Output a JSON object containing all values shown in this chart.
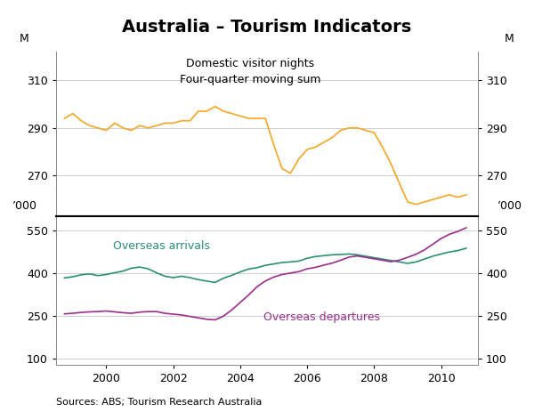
{
  "title": "Australia – Tourism Indicators",
  "source_text": "Sources: ABS; Tourism Research Australia",
  "upper_label_line1": "Domestic visitor nights",
  "upper_label_line2": "Four-quarter moving sum",
  "lower_label1": "Overseas arrivals",
  "lower_label2": "Overseas departures",
  "upper_ylabel": "M",
  "lower_ylabel": "’000",
  "upper_yticks": [
    270,
    290,
    310
  ],
  "lower_yticks": [
    100,
    250,
    400,
    550
  ],
  "upper_ylim": [
    253,
    322
  ],
  "lower_ylim": [
    80,
    600
  ],
  "xmin": 1998.5,
  "xmax": 2011.1,
  "xticks": [
    2000,
    2002,
    2004,
    2006,
    2008,
    2010
  ],
  "orange_color": "#F5A623",
  "teal_color": "#2A9073",
  "purple_color": "#9B2D8E",
  "grid_color": "#BBBBBB",
  "background_color": "#FFFFFF",
  "title_fontsize": 14,
  "label_fontsize": 9,
  "tick_fontsize": 9,
  "source_fontsize": 8,
  "domestic_x": [
    1998.75,
    1999.0,
    1999.25,
    1999.5,
    1999.75,
    2000.0,
    2000.25,
    2000.5,
    2000.75,
    2001.0,
    2001.25,
    2001.5,
    2001.75,
    2002.0,
    2002.25,
    2002.5,
    2002.75,
    2003.0,
    2003.25,
    2003.5,
    2003.75,
    2004.0,
    2004.25,
    2004.5,
    2004.75,
    2005.0,
    2005.25,
    2005.5,
    2005.75,
    2006.0,
    2006.25,
    2006.5,
    2006.75,
    2007.0,
    2007.25,
    2007.5,
    2007.75,
    2008.0,
    2008.25,
    2008.5,
    2008.75,
    2009.0,
    2009.25,
    2009.5,
    2009.75,
    2010.0,
    2010.25,
    2010.5,
    2010.75
  ],
  "domestic_y": [
    294,
    296,
    293,
    291,
    290,
    289,
    292,
    290,
    289,
    291,
    290,
    291,
    292,
    292,
    293,
    293,
    297,
    297,
    299,
    297,
    296,
    295,
    294,
    294,
    294,
    283,
    273,
    271,
    277,
    281,
    282,
    284,
    286,
    289,
    290,
    290,
    289,
    288,
    282,
    275,
    267,
    259,
    258,
    259,
    260,
    261,
    262,
    261,
    262
  ],
  "arrivals_x": [
    1998.75,
    1999.0,
    1999.25,
    1999.5,
    1999.75,
    2000.0,
    2000.25,
    2000.5,
    2000.75,
    2001.0,
    2001.25,
    2001.5,
    2001.75,
    2002.0,
    2002.25,
    2002.5,
    2002.75,
    2003.0,
    2003.25,
    2003.5,
    2003.75,
    2004.0,
    2004.25,
    2004.5,
    2004.75,
    2005.0,
    2005.25,
    2005.5,
    2005.75,
    2006.0,
    2006.25,
    2006.5,
    2006.75,
    2007.0,
    2007.25,
    2007.5,
    2007.75,
    2008.0,
    2008.25,
    2008.5,
    2008.75,
    2009.0,
    2009.25,
    2009.5,
    2009.75,
    2010.0,
    2010.25,
    2010.5,
    2010.75
  ],
  "arrivals_y": [
    384,
    388,
    395,
    398,
    392,
    396,
    402,
    408,
    418,
    422,
    416,
    402,
    390,
    385,
    390,
    385,
    378,
    373,
    368,
    383,
    393,
    405,
    415,
    420,
    428,
    433,
    438,
    440,
    443,
    453,
    459,
    462,
    465,
    466,
    468,
    465,
    460,
    455,
    450,
    445,
    440,
    435,
    440,
    450,
    460,
    468,
    475,
    480,
    488
  ],
  "departures_x": [
    1998.75,
    1999.0,
    1999.25,
    1999.5,
    1999.75,
    2000.0,
    2000.25,
    2000.5,
    2000.75,
    2001.0,
    2001.25,
    2001.5,
    2001.75,
    2002.0,
    2002.25,
    2002.5,
    2002.75,
    2003.0,
    2003.25,
    2003.5,
    2003.75,
    2004.0,
    2004.25,
    2004.5,
    2004.75,
    2005.0,
    2005.25,
    2005.5,
    2005.75,
    2006.0,
    2006.25,
    2006.5,
    2006.75,
    2007.0,
    2007.25,
    2007.5,
    2007.75,
    2008.0,
    2008.25,
    2008.5,
    2008.75,
    2009.0,
    2009.25,
    2009.5,
    2009.75,
    2010.0,
    2010.25,
    2010.5,
    2010.75
  ],
  "departures_y": [
    258,
    260,
    263,
    265,
    266,
    268,
    265,
    262,
    260,
    264,
    266,
    266,
    260,
    257,
    254,
    249,
    244,
    239,
    237,
    250,
    272,
    298,
    324,
    353,
    373,
    387,
    396,
    401,
    406,
    416,
    421,
    429,
    436,
    446,
    457,
    461,
    456,
    451,
    446,
    441,
    446,
    456,
    467,
    482,
    502,
    522,
    537,
    547,
    560
  ]
}
